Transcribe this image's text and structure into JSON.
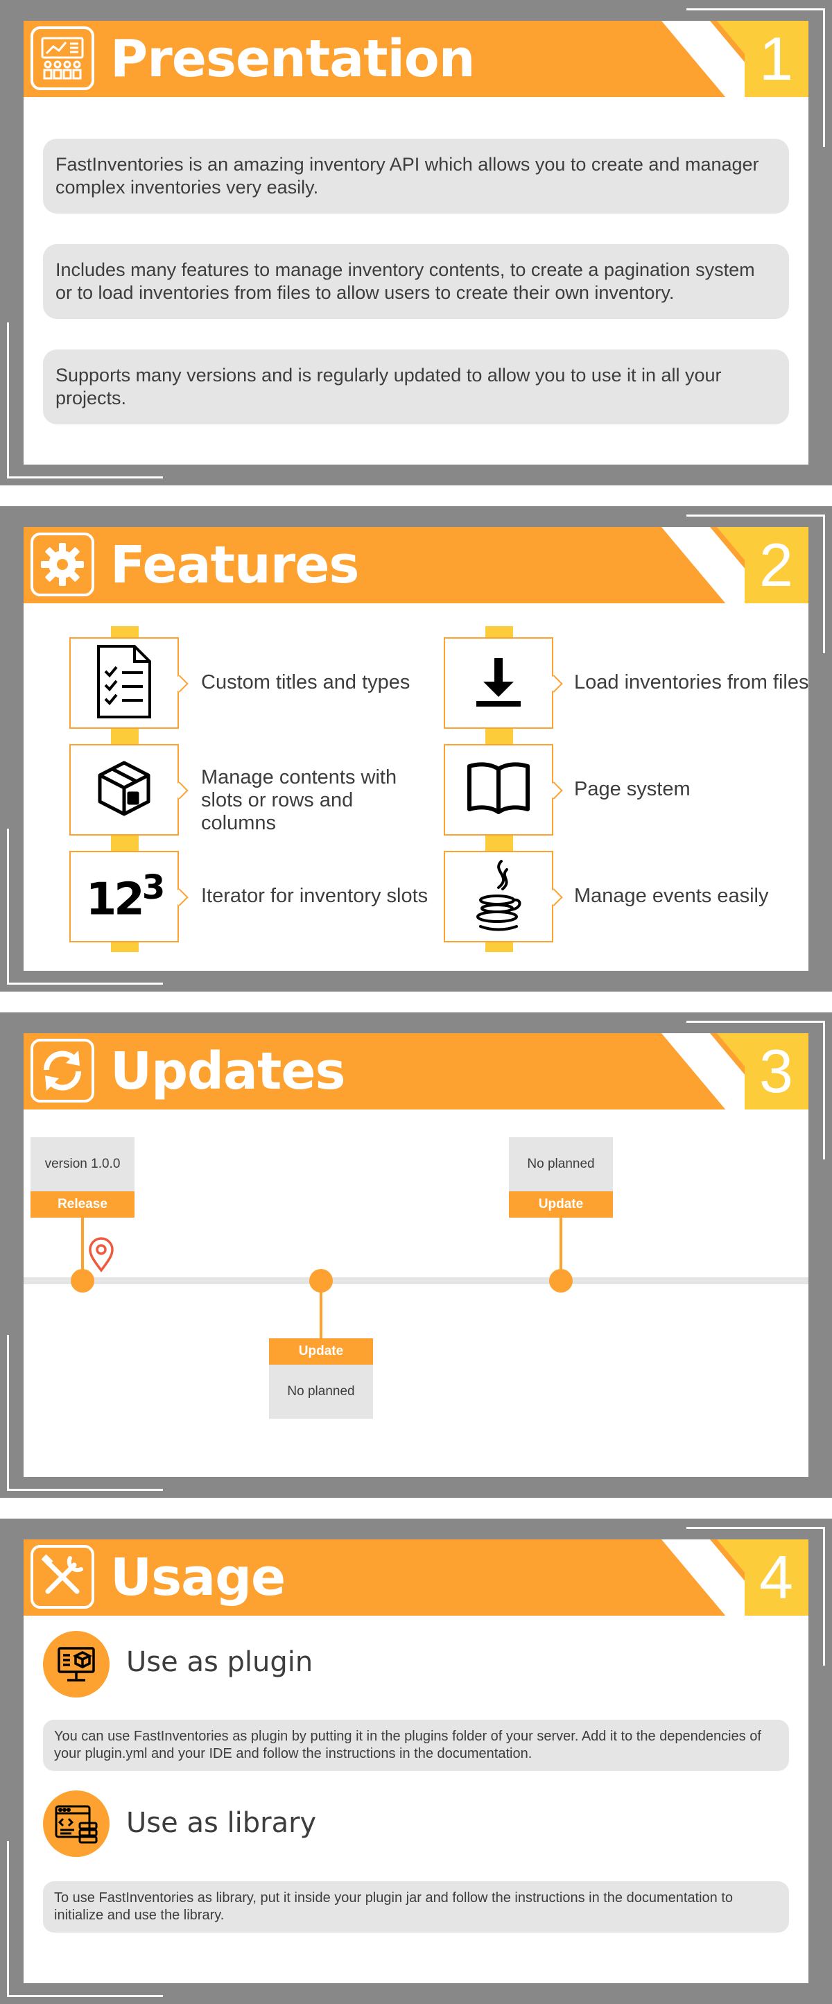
{
  "sections": {
    "presentation": {
      "title": "Presentation",
      "number": "1",
      "paragraphs": [
        "FastInventories is an amazing inventory API which allows you to create and manager complex inventories very easily.",
        "Includes many features to manage inventory contents, to create a pagination system or to load inventories from files to allow users to create their own inventory.",
        "Supports many versions and is regularly updated to allow you to use it in all your projects."
      ]
    },
    "features": {
      "title": "Features",
      "number": "2",
      "items": [
        {
          "label": "Custom titles and types",
          "icon": "document-checklist-icon"
        },
        {
          "label": "Load inventories from files",
          "icon": "download-icon"
        },
        {
          "label": "Manage contents with slots or rows and columns",
          "icon": "chest-icon"
        },
        {
          "label": "Page system",
          "icon": "open-book-icon"
        },
        {
          "label": "Iterator for inventory slots",
          "icon": "numbers-123-icon"
        },
        {
          "label": "Manage events easily",
          "icon": "java-icon"
        }
      ]
    },
    "updates": {
      "title": "Updates",
      "number": "3",
      "milestones": [
        {
          "status": "Release",
          "detail": "version 1.0.0",
          "current": true
        },
        {
          "status": "Update",
          "detail": "No planned"
        },
        {
          "status": "Update",
          "detail": "No planned"
        }
      ]
    },
    "usage": {
      "title": "Usage",
      "number": "4",
      "plugin": {
        "title": "Use as plugin",
        "text": "You can use FastInventories as plugin by putting it in the plugins folder of your server. Add it to the dependencies of your plugin.yml and your IDE and follow the instructions in the documentation."
      },
      "library": {
        "title": "Use as library",
        "text": "To use FastInventories as library, put it inside your plugin jar and follow the instructions in the documentation to initialize and use the library."
      }
    }
  },
  "colors": {
    "orange": "#fda231",
    "yellow": "#fccc3a",
    "gray_frame": "#888888",
    "pill": "#e5e5e5",
    "text": "#3d3d3d"
  }
}
